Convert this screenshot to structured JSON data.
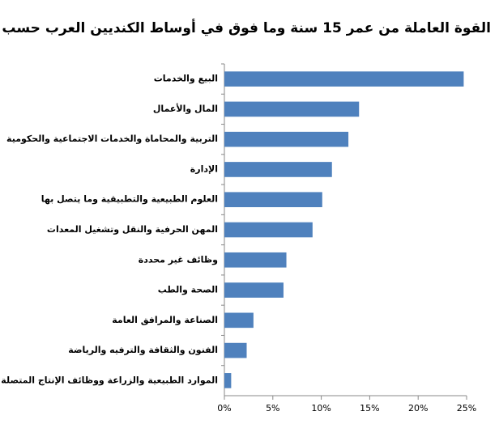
{
  "chart_data": {
    "type": "bar",
    "orientation": "horizontal",
    "title": "القوة العاملة من عمر 15 سنة وما فوق في أوساط الكنديين العرب حسب الوظائف",
    "categories": [
      "البيع والخدمات",
      "المال والأعمال",
      "التربية والمحاماة والخدمات الاجتماعية والحكومية",
      "الإدارة",
      "العلوم الطبيعية والتطبيقية وما يتصل بها",
      "المهن الحرفية والنقل وتشغيل المعدات",
      "وظائف غير محددة",
      "الصحة والطب",
      "الصناعة والمرافق العامة",
      "الفنون والثقافة والترفيه والرياضة",
      "الموارد الطبيعية والزراعة ووظائف الإنتاج المتصلة"
    ],
    "values": [
      24.7,
      13.9,
      12.8,
      11.1,
      10.1,
      9.1,
      6.4,
      6.1,
      3.0,
      2.3,
      0.7
    ],
    "color": "#4f81bd",
    "xlim": [
      0,
      25
    ],
    "xticks": [
      {
        "value": 0,
        "label": "0%"
      },
      {
        "value": 5,
        "label": "5%"
      },
      {
        "value": 10,
        "label": "10%"
      },
      {
        "value": 15,
        "label": "15%"
      },
      {
        "value": 20,
        "label": "20%"
      },
      {
        "value": 25,
        "label": "25%"
      }
    ],
    "grid": false
  }
}
